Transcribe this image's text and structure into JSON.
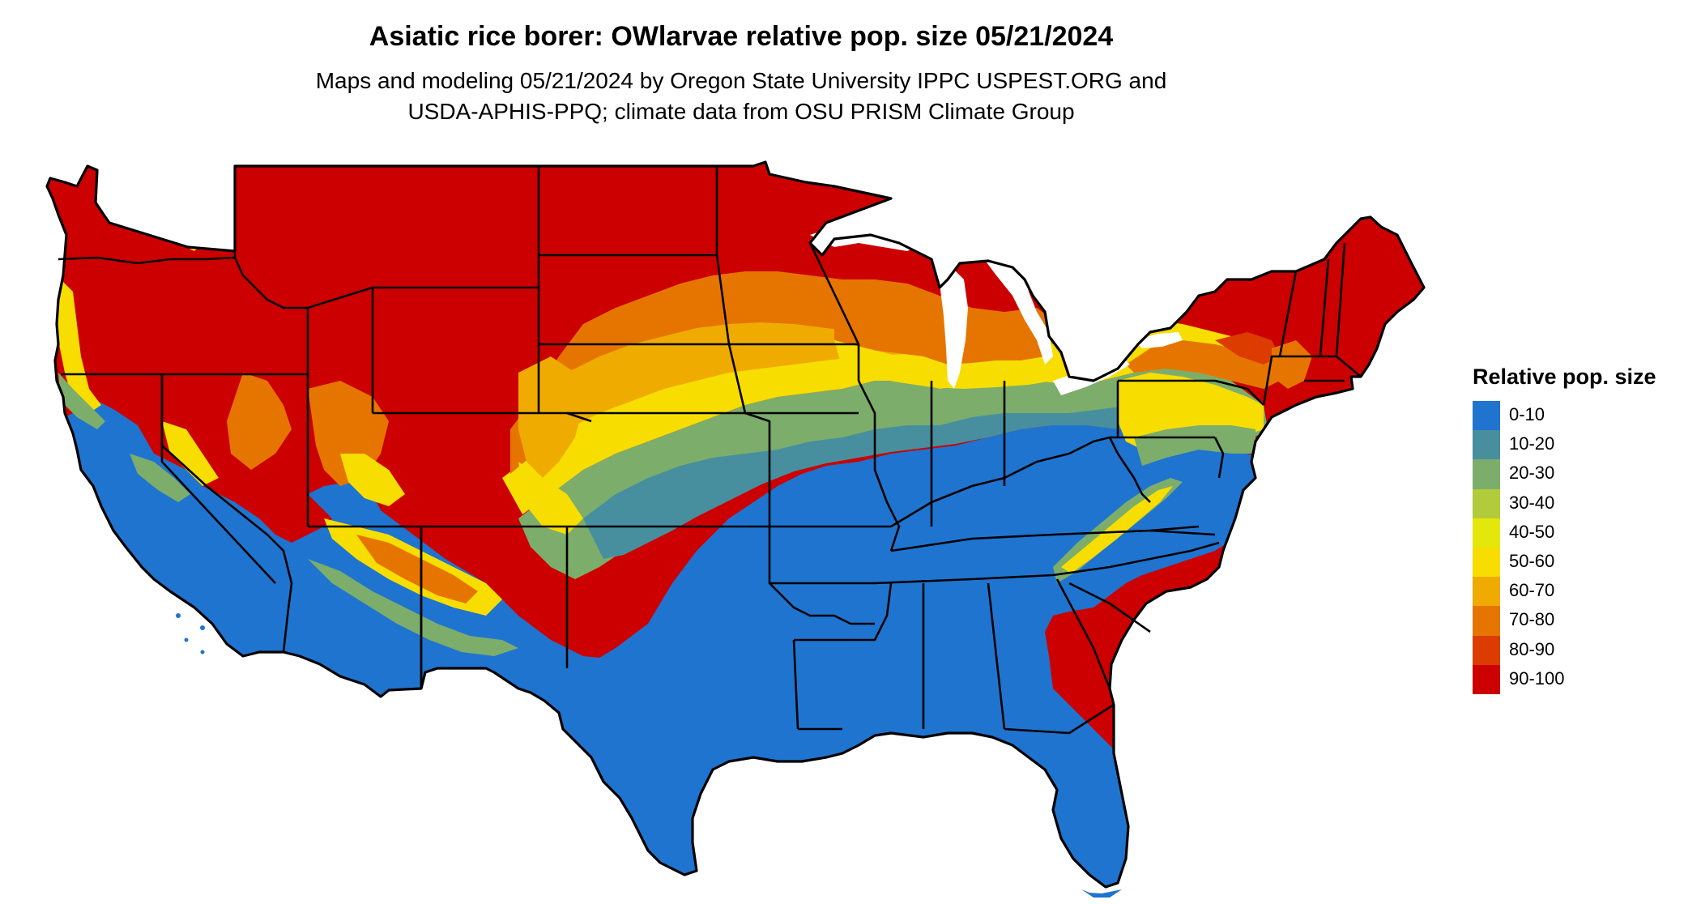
{
  "title": "Asiatic rice borer: OWlarvae relative pop. size 05/21/2024",
  "subtitle_line1": "Maps and modeling 05/21/2024 by Oregon State University IPPC USPEST.ORG and",
  "subtitle_line2": "USDA-APHIS-PPQ; climate data from OSU PRISM Climate Group",
  "legend": {
    "title": "Relative pop. size",
    "items": [
      {
        "label": "0-10",
        "color": "#1f74cf"
      },
      {
        "label": "10-20",
        "color": "#478f9e"
      },
      {
        "label": "20-30",
        "color": "#7cad6b"
      },
      {
        "label": "30-40",
        "color": "#b2cb3a"
      },
      {
        "label": "40-50",
        "color": "#e3e70b"
      },
      {
        "label": "50-60",
        "color": "#f7de00"
      },
      {
        "label": "60-70",
        "color": "#f0ab00"
      },
      {
        "label": "70-80",
        "color": "#e67500"
      },
      {
        "label": "80-90",
        "color": "#dc3c00"
      },
      {
        "label": "90-100",
        "color": "#cc0000"
      }
    ]
  }
}
